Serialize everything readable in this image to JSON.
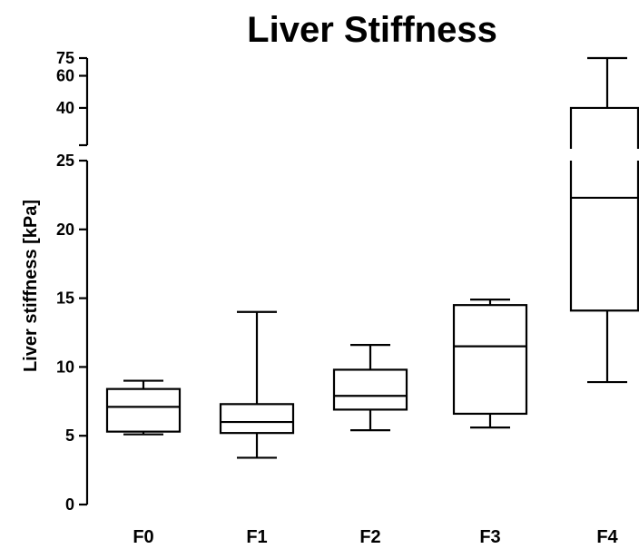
{
  "chart_data": {
    "type": "box",
    "title": "Liver Stiffness",
    "ylabel": "Liver stiffness [kPa]",
    "xlabel": "",
    "y_axis": {
      "broken": true,
      "lower_segment": {
        "range": [
          0,
          25
        ],
        "ticks": [
          "0",
          "5",
          "10",
          "15",
          "20",
          "25"
        ]
      },
      "upper_segment": {
        "range": [
          25,
          75
        ],
        "ticks": [
          "40",
          "60",
          "75"
        ]
      }
    },
    "categories": [
      "F0",
      "F1",
      "F2",
      "F3",
      "F4"
    ],
    "boxes": [
      {
        "category": "F0",
        "min": 5.1,
        "q1": 5.3,
        "median": 7.1,
        "q3": 8.4,
        "max": 9.0
      },
      {
        "category": "F1",
        "min": 3.4,
        "q1": 5.2,
        "median": 6.0,
        "q3": 7.3,
        "max": 14.0
      },
      {
        "category": "F2",
        "min": 5.4,
        "q1": 6.9,
        "median": 7.9,
        "q3": 9.8,
        "max": 11.6
      },
      {
        "category": "F3",
        "min": 5.6,
        "q1": 6.6,
        "median": 11.5,
        "q3": 14.5,
        "max": 14.9
      },
      {
        "category": "F4",
        "min": 8.9,
        "q1": 14.1,
        "median": 22.3,
        "q3": 40.0,
        "max": 75.0
      }
    ],
    "grid": false,
    "legend": "none"
  }
}
